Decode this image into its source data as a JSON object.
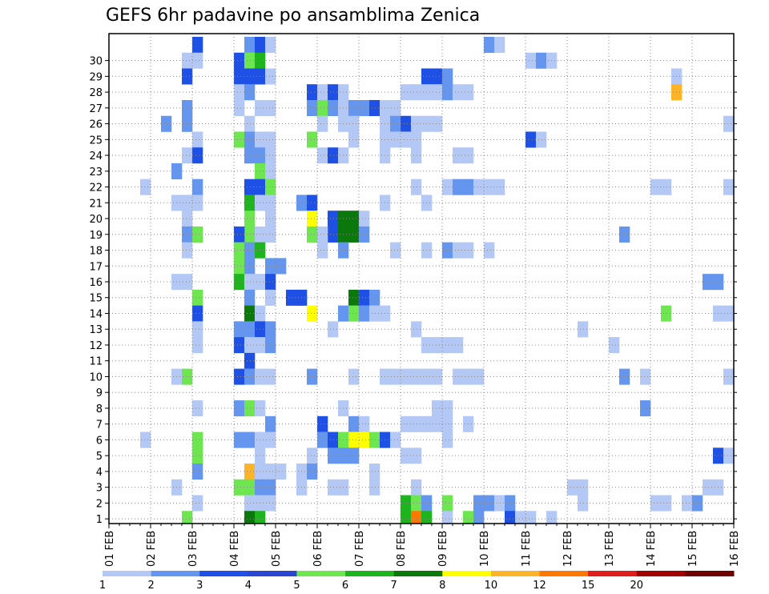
{
  "chart_data": {
    "type": "heatmap",
    "title": "GEFS 6hr padavine po ansamblima Zenica",
    "xlabel": "",
    "ylabel": "",
    "x_tick_labels": [
      "01 FEB",
      "02 FEB",
      "03 FEB",
      "04 FEB",
      "05 FEB",
      "06 FEB",
      "07 FEB",
      "08 FEB",
      "09 FEB",
      "10 FEB",
      "11 FEB",
      "12 FEB",
      "13 FEB",
      "14 FEB",
      "15 FEB",
      "16 FEB"
    ],
    "y_tick_labels": [
      "1",
      "2",
      "3",
      "4",
      "5",
      "6",
      "7",
      "8",
      "9",
      "10",
      "11",
      "12",
      "13",
      "14",
      "15",
      "16",
      "17",
      "18",
      "19",
      "20",
      "21",
      "22",
      "23",
      "24",
      "25",
      "26",
      "27",
      "28",
      "29",
      "30"
    ],
    "x_steps_per_day": 4,
    "n_members": 30,
    "grid": true,
    "colorbar": {
      "labels": [
        "1",
        "2",
        "3",
        "4",
        "5",
        "6",
        "7",
        "8",
        "10",
        "12",
        "15",
        "20"
      ],
      "colors": [
        "#b4c8f5",
        "#6496f0",
        "#1e50e6",
        "#2a46d2",
        "#6ee650",
        "#1eb41e",
        "#0a780a",
        "#ffff00",
        "#ffb428",
        "#ff7800",
        "#e11e1e",
        "#a00000",
        "#6e0000"
      ]
    },
    "cells_legend": "each cell: [member, time_step_index, color_class]",
    "cells": [
      [
        30,
        8,
        2
      ],
      [
        30,
        13,
        1
      ],
      [
        30,
        14,
        2
      ],
      [
        30,
        15,
        0
      ],
      [
        30,
        36,
        1
      ],
      [
        30,
        37,
        0
      ],
      [
        29,
        7,
        0
      ],
      [
        29,
        8,
        0
      ],
      [
        29,
        12,
        2
      ],
      [
        29,
        13,
        4
      ],
      [
        29,
        14,
        5
      ],
      [
        29,
        40,
        0
      ],
      [
        29,
        41,
        1
      ],
      [
        29,
        42,
        0
      ],
      [
        28,
        7,
        2
      ],
      [
        28,
        12,
        2
      ],
      [
        28,
        13,
        2
      ],
      [
        28,
        14,
        2
      ],
      [
        28,
        15,
        0
      ],
      [
        28,
        30,
        2
      ],
      [
        28,
        31,
        2
      ],
      [
        28,
        32,
        1
      ],
      [
        28,
        54,
        0
      ],
      [
        27,
        12,
        0
      ],
      [
        27,
        13,
        1
      ],
      [
        27,
        19,
        2
      ],
      [
        27,
        20,
        0
      ],
      [
        27,
        21,
        2
      ],
      [
        27,
        22,
        0
      ],
      [
        27,
        28,
        0
      ],
      [
        27,
        29,
        0
      ],
      [
        27,
        30,
        0
      ],
      [
        27,
        31,
        0
      ],
      [
        27,
        32,
        1
      ],
      [
        27,
        33,
        0
      ],
      [
        27,
        34,
        0
      ],
      [
        27,
        54,
        8
      ],
      [
        26,
        7,
        1
      ],
      [
        26,
        12,
        0
      ],
      [
        26,
        14,
        0
      ],
      [
        26,
        15,
        0
      ],
      [
        26,
        19,
        1
      ],
      [
        26,
        20,
        4
      ],
      [
        26,
        21,
        1
      ],
      [
        26,
        22,
        0
      ],
      [
        26,
        23,
        1
      ],
      [
        26,
        24,
        1
      ],
      [
        26,
        25,
        2
      ],
      [
        26,
        26,
        0
      ],
      [
        26,
        27,
        0
      ],
      [
        25,
        5,
        1
      ],
      [
        25,
        7,
        1
      ],
      [
        25,
        13,
        0
      ],
      [
        25,
        20,
        0
      ],
      [
        25,
        22,
        0
      ],
      [
        25,
        23,
        0
      ],
      [
        25,
        26,
        0
      ],
      [
        25,
        27,
        1
      ],
      [
        25,
        28,
        2
      ],
      [
        25,
        29,
        0
      ],
      [
        25,
        30,
        0
      ],
      [
        25,
        31,
        0
      ],
      [
        25,
        59,
        0
      ],
      [
        24,
        8,
        0
      ],
      [
        24,
        12,
        4
      ],
      [
        24,
        13,
        1
      ],
      [
        24,
        14,
        0
      ],
      [
        24,
        15,
        0
      ],
      [
        24,
        19,
        4
      ],
      [
        24,
        23,
        0
      ],
      [
        24,
        26,
        0
      ],
      [
        24,
        27,
        0
      ],
      [
        24,
        28,
        0
      ],
      [
        24,
        29,
        0
      ],
      [
        24,
        40,
        2
      ],
      [
        24,
        41,
        0
      ],
      [
        23,
        7,
        0
      ],
      [
        23,
        8,
        2
      ],
      [
        23,
        13,
        1
      ],
      [
        23,
        14,
        1
      ],
      [
        23,
        15,
        0
      ],
      [
        23,
        20,
        0
      ],
      [
        23,
        21,
        2
      ],
      [
        23,
        22,
        0
      ],
      [
        23,
        26,
        0
      ],
      [
        23,
        29,
        0
      ],
      [
        23,
        33,
        0
      ],
      [
        23,
        34,
        0
      ],
      [
        22,
        6,
        1
      ],
      [
        22,
        14,
        4
      ],
      [
        22,
        15,
        0
      ],
      [
        21,
        3,
        0
      ],
      [
        21,
        8,
        1
      ],
      [
        21,
        13,
        2
      ],
      [
        21,
        14,
        2
      ],
      [
        21,
        15,
        4
      ],
      [
        21,
        29,
        0
      ],
      [
        21,
        32,
        0
      ],
      [
        21,
        33,
        1
      ],
      [
        21,
        34,
        1
      ],
      [
        21,
        35,
        0
      ],
      [
        21,
        36,
        0
      ],
      [
        21,
        37,
        0
      ],
      [
        21,
        52,
        0
      ],
      [
        21,
        53,
        0
      ],
      [
        21,
        59,
        0
      ],
      [
        20,
        6,
        0
      ],
      [
        20,
        7,
        0
      ],
      [
        20,
        8,
        0
      ],
      [
        20,
        13,
        5
      ],
      [
        20,
        14,
        0
      ],
      [
        20,
        15,
        0
      ],
      [
        20,
        18,
        1
      ],
      [
        20,
        19,
        2
      ],
      [
        20,
        26,
        0
      ],
      [
        20,
        30,
        0
      ],
      [
        19,
        7,
        0
      ],
      [
        19,
        13,
        4
      ],
      [
        19,
        15,
        0
      ],
      [
        19,
        19,
        7
      ],
      [
        19,
        21,
        2
      ],
      [
        19,
        22,
        6
      ],
      [
        19,
        23,
        6
      ],
      [
        19,
        24,
        0
      ],
      [
        18,
        7,
        1
      ],
      [
        18,
        13,
        4
      ],
      [
        18,
        15,
        0
      ],
      [
        18,
        19,
        4
      ],
      [
        18,
        21,
        2
      ],
      [
        18,
        22,
        6
      ],
      [
        18,
        23,
        6
      ],
      [
        18,
        24,
        1
      ],
      [
        18,
        8,
        4
      ],
      [
        18,
        12,
        2
      ],
      [
        18,
        14,
        0
      ],
      [
        18,
        20,
        0
      ],
      [
        18,
        49,
        1
      ],
      [
        17,
        7,
        0
      ],
      [
        17,
        12,
        4
      ],
      [
        17,
        13,
        1
      ],
      [
        17,
        14,
        5
      ],
      [
        17,
        20,
        0
      ],
      [
        17,
        22,
        1
      ],
      [
        17,
        27,
        0
      ],
      [
        17,
        30,
        0
      ],
      [
        17,
        32,
        1
      ],
      [
        17,
        33,
        0
      ],
      [
        17,
        34,
        0
      ],
      [
        17,
        36,
        0
      ],
      [
        16,
        12,
        4
      ],
      [
        16,
        13,
        1
      ],
      [
        16,
        15,
        1
      ],
      [
        16,
        16,
        1
      ],
      [
        15,
        6,
        0
      ],
      [
        15,
        7,
        0
      ],
      [
        15,
        12,
        5
      ],
      [
        15,
        13,
        0
      ],
      [
        15,
        14,
        0
      ],
      [
        15,
        15,
        2
      ],
      [
        15,
        57,
        1
      ],
      [
        15,
        58,
        1
      ],
      [
        14,
        8,
        4
      ],
      [
        14,
        13,
        1
      ],
      [
        14,
        15,
        0
      ],
      [
        14,
        17,
        2
      ],
      [
        14,
        18,
        2
      ],
      [
        14,
        23,
        6
      ],
      [
        14,
        24,
        2
      ],
      [
        14,
        25,
        1
      ],
      [
        13,
        8,
        2
      ],
      [
        13,
        13,
        6
      ],
      [
        13,
        14,
        0
      ],
      [
        13,
        19,
        7
      ],
      [
        13,
        22,
        1
      ],
      [
        13,
        23,
        4
      ],
      [
        13,
        24,
        1
      ],
      [
        13,
        25,
        0
      ],
      [
        13,
        26,
        0
      ],
      [
        13,
        53,
        4
      ],
      [
        13,
        58,
        0
      ],
      [
        13,
        59,
        0
      ],
      [
        12,
        8,
        0
      ],
      [
        12,
        12,
        1
      ],
      [
        12,
        13,
        1
      ],
      [
        12,
        14,
        2
      ],
      [
        12,
        15,
        1
      ],
      [
        12,
        21,
        0
      ],
      [
        12,
        29,
        0
      ],
      [
        12,
        45,
        0
      ],
      [
        11,
        8,
        0
      ],
      [
        11,
        12,
        2
      ],
      [
        11,
        13,
        0
      ],
      [
        11,
        14,
        0
      ],
      [
        11,
        15,
        1
      ],
      [
        11,
        30,
        0
      ],
      [
        11,
        31,
        0
      ],
      [
        11,
        32,
        0
      ],
      [
        11,
        33,
        0
      ],
      [
        11,
        48,
        0
      ],
      [
        10,
        13,
        2
      ],
      [
        9,
        6,
        0
      ],
      [
        9,
        7,
        4
      ],
      [
        9,
        12,
        2
      ],
      [
        9,
        13,
        1
      ],
      [
        9,
        14,
        0
      ],
      [
        9,
        15,
        0
      ],
      [
        9,
        19,
        1
      ],
      [
        9,
        23,
        0
      ],
      [
        9,
        26,
        0
      ],
      [
        9,
        27,
        0
      ],
      [
        9,
        28,
        0
      ],
      [
        9,
        29,
        0
      ],
      [
        9,
        30,
        0
      ],
      [
        9,
        31,
        0
      ],
      [
        9,
        33,
        0
      ],
      [
        9,
        34,
        0
      ],
      [
        9,
        35,
        0
      ],
      [
        9,
        49,
        1
      ],
      [
        9,
        51,
        0
      ],
      [
        9,
        59,
        0
      ],
      [
        7,
        8,
        0
      ],
      [
        7,
        12,
        1
      ],
      [
        7,
        13,
        4
      ],
      [
        7,
        14,
        0
      ],
      [
        7,
        22,
        0
      ],
      [
        7,
        31,
        0
      ],
      [
        7,
        32,
        0
      ],
      [
        7,
        51,
        1
      ],
      [
        6,
        15,
        1
      ],
      [
        6,
        20,
        2
      ],
      [
        6,
        23,
        1
      ],
      [
        6,
        24,
        0
      ],
      [
        6,
        28,
        0
      ],
      [
        6,
        29,
        0
      ],
      [
        6,
        30,
        0
      ],
      [
        6,
        31,
        0
      ],
      [
        6,
        32,
        0
      ],
      [
        6,
        34,
        0
      ],
      [
        5,
        3,
        0
      ],
      [
        5,
        8,
        4
      ],
      [
        5,
        12,
        1
      ],
      [
        5,
        13,
        1
      ],
      [
        5,
        14,
        0
      ],
      [
        5,
        15,
        0
      ],
      [
        5,
        20,
        1
      ],
      [
        5,
        21,
        2
      ],
      [
        5,
        22,
        4
      ],
      [
        5,
        23,
        7
      ],
      [
        5,
        24,
        7
      ],
      [
        5,
        25,
        4
      ],
      [
        5,
        26,
        2
      ],
      [
        5,
        27,
        0
      ],
      [
        5,
        32,
        0
      ],
      [
        4,
        8,
        4
      ],
      [
        4,
        14,
        0
      ],
      [
        4,
        19,
        0
      ],
      [
        4,
        21,
        1
      ],
      [
        4,
        22,
        1
      ],
      [
        4,
        23,
        1
      ],
      [
        4,
        28,
        0
      ],
      [
        4,
        29,
        0
      ],
      [
        4,
        58,
        2
      ],
      [
        4,
        59,
        0
      ],
      [
        3,
        8,
        1
      ],
      [
        3,
        13,
        8
      ],
      [
        3,
        14,
        0
      ],
      [
        3,
        15,
        0
      ],
      [
        3,
        16,
        0
      ],
      [
        3,
        18,
        0
      ],
      [
        3,
        19,
        1
      ],
      [
        3,
        25,
        0
      ],
      [
        2,
        6,
        0
      ],
      [
        2,
        12,
        4
      ],
      [
        2,
        13,
        4
      ],
      [
        2,
        14,
        1
      ],
      [
        2,
        15,
        1
      ],
      [
        2,
        18,
        0
      ],
      [
        2,
        21,
        0
      ],
      [
        2,
        22,
        0
      ],
      [
        2,
        25,
        0
      ],
      [
        2,
        29,
        0
      ],
      [
        2,
        44,
        0
      ],
      [
        2,
        45,
        0
      ],
      [
        2,
        57,
        0
      ],
      [
        2,
        58,
        0
      ],
      [
        1,
        8,
        0
      ],
      [
        1,
        13,
        0
      ],
      [
        1,
        14,
        0
      ],
      [
        1,
        15,
        0
      ],
      [
        1,
        28,
        5
      ],
      [
        1,
        29,
        4
      ],
      [
        1,
        30,
        1
      ],
      [
        1,
        32,
        4
      ],
      [
        1,
        35,
        1
      ],
      [
        1,
        36,
        1
      ],
      [
        1,
        37,
        0
      ],
      [
        1,
        38,
        1
      ],
      [
        1,
        45,
        0
      ],
      [
        1,
        52,
        0
      ],
      [
        1,
        53,
        0
      ],
      [
        1,
        55,
        0
      ],
      [
        1,
        56,
        1
      ],
      [
        0,
        7,
        4
      ],
      [
        0,
        13,
        6
      ],
      [
        0,
        14,
        5
      ],
      [
        0,
        28,
        5
      ],
      [
        0,
        29,
        9
      ],
      [
        0,
        30,
        5
      ],
      [
        0,
        32,
        0
      ],
      [
        0,
        34,
        4
      ],
      [
        0,
        35,
        1
      ],
      [
        0,
        38,
        2
      ],
      [
        0,
        39,
        0
      ],
      [
        0,
        40,
        0
      ],
      [
        0,
        42,
        0
      ]
    ]
  }
}
